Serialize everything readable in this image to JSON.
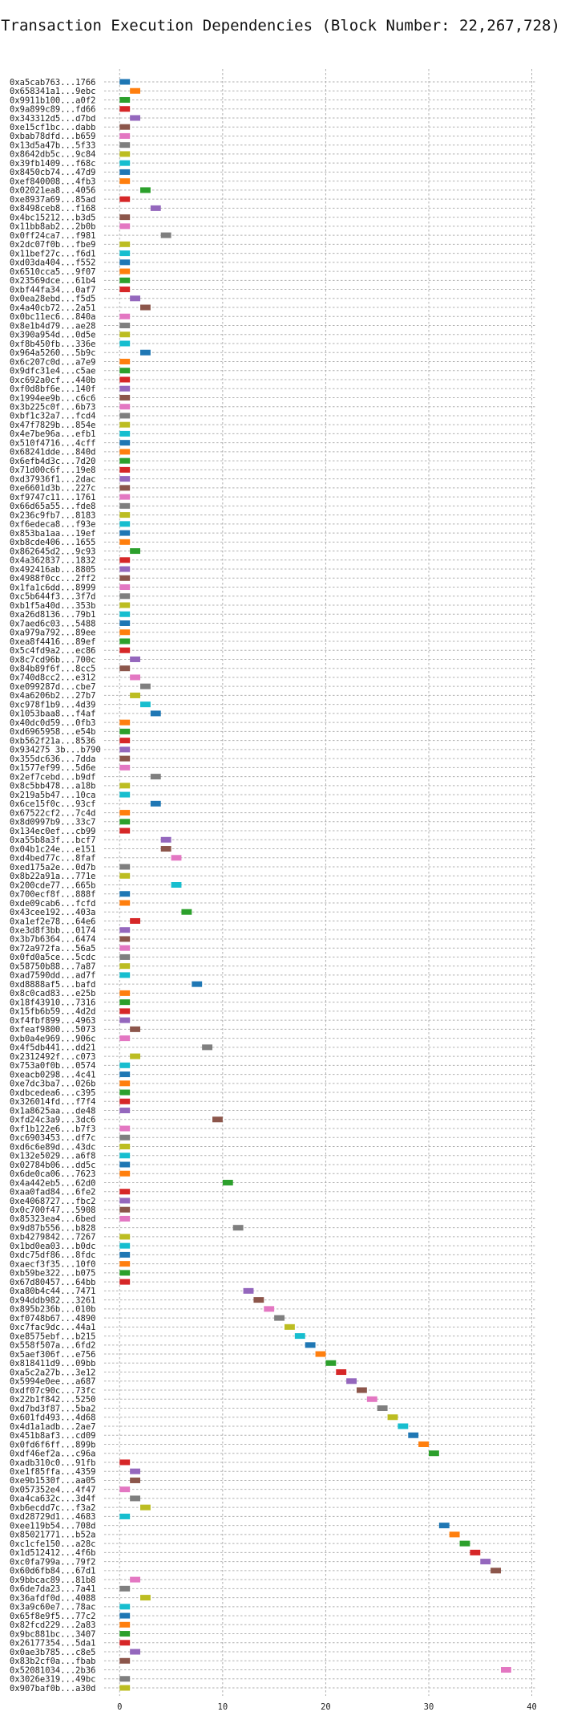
{
  "chart_data": {
    "type": "gantt",
    "title": "Transaction Execution Dependencies (Block Number: 22,267,728)",
    "xlabel": "",
    "ylabel": "",
    "xlim": [
      -1.5,
      40.5
    ],
    "xticks": [
      0,
      10,
      20,
      30,
      40
    ],
    "grid": "dashed",
    "palette": [
      "#1f77b4",
      "#ff7f0e",
      "#2ca02c",
      "#d62728",
      "#9467bd",
      "#8c564b",
      "#e377c2",
      "#7f7f7f",
      "#bcbd22",
      "#17becf"
    ],
    "rows": [
      {
        "label": "0xa5cab763...1766",
        "start": 0
      },
      {
        "label": "0x658341a1...9ebc",
        "start": 1
      },
      {
        "label": "0x9911b100...a0f2",
        "start": 0
      },
      {
        "label": "0x9a899c89...fd66",
        "start": 0
      },
      {
        "label": "0x343312d5...d7bd",
        "start": 1
      },
      {
        "label": "0xe15cf1bc...dabb",
        "start": 0
      },
      {
        "label": "0xbab78dfd...b659",
        "start": 0
      },
      {
        "label": "0x13d5a47b...5f33",
        "start": 0
      },
      {
        "label": "0x8642db5c...9c84",
        "start": 0
      },
      {
        "label": "0x39fb1409...f68c",
        "start": 0
      },
      {
        "label": "0x8450cb74...47d9",
        "start": 0
      },
      {
        "label": "0xef840008...4fb3",
        "start": 0
      },
      {
        "label": "0x02021ea8...4056",
        "start": 2
      },
      {
        "label": "0xe8937a69...85ad",
        "start": 0
      },
      {
        "label": "0x8498ceb8...f168",
        "start": 3
      },
      {
        "label": "0x4bc15212...b3d5",
        "start": 0
      },
      {
        "label": "0x11bb8ab2...2b0b",
        "start": 0
      },
      {
        "label": "0x0ff24ca7...f981",
        "start": 4
      },
      {
        "label": "0x2dc07f0b...fbe9",
        "start": 0
      },
      {
        "label": "0x11bef27c...f6d1",
        "start": 0
      },
      {
        "label": "0xd03da404...f552",
        "start": 0
      },
      {
        "label": "0x6510cca5...9f07",
        "start": 0
      },
      {
        "label": "0x23569dce...61b4",
        "start": 0
      },
      {
        "label": "0xbf44fa34...0af7",
        "start": 0
      },
      {
        "label": "0x0ea28ebd...f5d5",
        "start": 1
      },
      {
        "label": "0x4a40cb72...2a51",
        "start": 2
      },
      {
        "label": "0x0bc11ec6...840a",
        "start": 0
      },
      {
        "label": "0x8e1b4d79...ae28",
        "start": 0
      },
      {
        "label": "0x390a954d...0d5e",
        "start": 0
      },
      {
        "label": "0xf8b450fb...336e",
        "start": 0
      },
      {
        "label": "0x964a5260...5b9c",
        "start": 2
      },
      {
        "label": "0x6c207c0d...a7e9",
        "start": 0
      },
      {
        "label": "0x9dfc31e4...c5ae",
        "start": 0
      },
      {
        "label": "0xc692a0cf...440b",
        "start": 0
      },
      {
        "label": "0xf0d8bf6e...140f",
        "start": 0
      },
      {
        "label": "0x1994ee9b...c6c6",
        "start": 0
      },
      {
        "label": "0x3b225c0f...6b73",
        "start": 0
      },
      {
        "label": "0xbf1c32a7...fcd4",
        "start": 0
      },
      {
        "label": "0x47f7829b...854e",
        "start": 0
      },
      {
        "label": "0x4e7be96a...efb1",
        "start": 0
      },
      {
        "label": "0x510f4716...4cff",
        "start": 0
      },
      {
        "label": "0x68241dde...840d",
        "start": 0
      },
      {
        "label": "0x6efb4d3c...7d20",
        "start": 0
      },
      {
        "label": "0x71d00c6f...19e8",
        "start": 0
      },
      {
        "label": "0xd37936f1...2dac",
        "start": 0
      },
      {
        "label": "0xe6601d3b...227c",
        "start": 0
      },
      {
        "label": "0xf9747c11...1761",
        "start": 0
      },
      {
        "label": "0x66d65a55...fde8",
        "start": 0
      },
      {
        "label": "0x236c9fb7...8183",
        "start": 0
      },
      {
        "label": "0xf6edeca8...f93e",
        "start": 0
      },
      {
        "label": "0x853ba1aa...19ef",
        "start": 0
      },
      {
        "label": "0xb8cde406...1655",
        "start": 0
      },
      {
        "label": "0x862645d2...9c93",
        "start": 1
      },
      {
        "label": "0x4a362837...1832",
        "start": 0
      },
      {
        "label": "0x492416ab...8805",
        "start": 0
      },
      {
        "label": "0x4988f0cc...2ff2",
        "start": 0
      },
      {
        "label": "0x1fa1c6dd...8999",
        "start": 0
      },
      {
        "label": "0xc5b644f3...3f7d",
        "start": 0
      },
      {
        "label": "0xb1f5a40d...353b",
        "start": 0
      },
      {
        "label": "0xa26d8136...79b1",
        "start": 0
      },
      {
        "label": "0x7aed6c03...5488",
        "start": 0
      },
      {
        "label": "0xa979a792...89ee",
        "start": 0
      },
      {
        "label": "0xea8f4416...89ef",
        "start": 0
      },
      {
        "label": "0x5c4fd9a2...ec86",
        "start": 0
      },
      {
        "label": "0x8c7cd96b...700c",
        "start": 1
      },
      {
        "label": "0x84b89f6f...8cc5",
        "start": 0
      },
      {
        "label": "0x740d8cc2...e312",
        "start": 1
      },
      {
        "label": "0xe099287d...cbe7",
        "start": 2
      },
      {
        "label": "0x4a6206b2...27b7",
        "start": 1
      },
      {
        "label": "0xc978f1b9...4d39",
        "start": 2
      },
      {
        "label": "0x1053baa8...f4af",
        "start": 3
      },
      {
        "label": "0x40dc0d59...0fb3",
        "start": 0
      },
      {
        "label": "0xd6965958...e54b",
        "start": 0
      },
      {
        "label": "0xb562f21a...8536",
        "start": 0
      },
      {
        "label": "0x934275 3b...b790",
        "start": 0
      },
      {
        "label": "0x355dc636...7dda",
        "start": 0
      },
      {
        "label": "0x1577ef99...5d6e",
        "start": 0
      },
      {
        "label": "0x2ef7cebd...b9df",
        "start": 3
      },
      {
        "label": "0x8c5bb478...a18b",
        "start": 0
      },
      {
        "label": "0x219a5b47...10ca",
        "start": 0
      },
      {
        "label": "0x6ce15f0c...93cf",
        "start": 3
      },
      {
        "label": "0x67522cf2...7c4d",
        "start": 0
      },
      {
        "label": "0x8d0997b9...33c7",
        "start": 0
      },
      {
        "label": "0x134ec0ef...cb99",
        "start": 0
      },
      {
        "label": "0xa55b8a3f...bcf7",
        "start": 4
      },
      {
        "label": "0x04b1c24e...e151",
        "start": 4
      },
      {
        "label": "0xd4bed77c...8faf",
        "start": 5
      },
      {
        "label": "0xed175a2e...0d7b",
        "start": 0
      },
      {
        "label": "0x8b22a91a...771e",
        "start": 0
      },
      {
        "label": "0x200cde77...665b",
        "start": 5
      },
      {
        "label": "0x700ecf8f...888f",
        "start": 0
      },
      {
        "label": "0xde09cab6...fcfd",
        "start": 0
      },
      {
        "label": "0x43cee192...403a",
        "start": 6
      },
      {
        "label": "0xa1ef2e78...64e6",
        "start": 1
      },
      {
        "label": "0xe3d8f3bb...0174",
        "start": 0
      },
      {
        "label": "0x3b7b6364...6474",
        "start": 0
      },
      {
        "label": "0x72a972fa...56a5",
        "start": 0
      },
      {
        "label": "0x0fd0a5ce...5cdc",
        "start": 0
      },
      {
        "label": "0x58750b88...7a87",
        "start": 0
      },
      {
        "label": "0xad7590dd...ad7f",
        "start": 0
      },
      {
        "label": "0xd8888af5...bafd",
        "start": 7
      },
      {
        "label": "0x8c0cad83...e25b",
        "start": 0
      },
      {
        "label": "0x18f43910...7316",
        "start": 0
      },
      {
        "label": "0x15fb6b59...4d2d",
        "start": 0
      },
      {
        "label": "0xf4fbf899...4963",
        "start": 0
      },
      {
        "label": "0xfeaf9800...5073",
        "start": 1
      },
      {
        "label": "0xb0a4e969...906c",
        "start": 0
      },
      {
        "label": "0x4f5db441...dd21",
        "start": 8
      },
      {
        "label": "0x2312492f...c073",
        "start": 1
      },
      {
        "label": "0x753a0f0b...0574",
        "start": 0
      },
      {
        "label": "0xeacb0298...4c41",
        "start": 0
      },
      {
        "label": "0xe7dc3ba7...026b",
        "start": 0
      },
      {
        "label": "0xdbcedea6...c395",
        "start": 0
      },
      {
        "label": "0x326014fd...f7f4",
        "start": 0
      },
      {
        "label": "0x1a8625aa...de48",
        "start": 0
      },
      {
        "label": "0xfd24c3a9...3dc6",
        "start": 9
      },
      {
        "label": "0xf1b122e6...b7f3",
        "start": 0
      },
      {
        "label": "0xc6903453...df7c",
        "start": 0
      },
      {
        "label": "0xd6c6e89d...43dc",
        "start": 0
      },
      {
        "label": "0x132e5029...a6f8",
        "start": 0
      },
      {
        "label": "0x02784b06...dd5c",
        "start": 0
      },
      {
        "label": "0x6de0ca06...7623",
        "start": 0
      },
      {
        "label": "0x4a442eb5...62d0",
        "start": 10
      },
      {
        "label": "0xaa0fad84...6fe2",
        "start": 0
      },
      {
        "label": "0xe4068727...fbc2",
        "start": 0
      },
      {
        "label": "0x0c700f47...5908",
        "start": 0
      },
      {
        "label": "0x85323ea4...6bed",
        "start": 0
      },
      {
        "label": "0x9d87b556...b828",
        "start": 11
      },
      {
        "label": "0xb4279842...7267",
        "start": 0
      },
      {
        "label": "0x1bd0ea03...b0dc",
        "start": 0
      },
      {
        "label": "0xdc75df86...8fdc",
        "start": 0
      },
      {
        "label": "0xaecf3f35...10f0",
        "start": 0
      },
      {
        "label": "0xb59be322...b075",
        "start": 0
      },
      {
        "label": "0x67d80457...64bb",
        "start": 0
      },
      {
        "label": "0xa80b4c44...7471",
        "start": 12
      },
      {
        "label": "0x94ddb982...3261",
        "start": 13
      },
      {
        "label": "0x895b236b...010b",
        "start": 14
      },
      {
        "label": "0xf0748b67...4890",
        "start": 15
      },
      {
        "label": "0xc7fac9dc...44a1",
        "start": 16
      },
      {
        "label": "0xe8575ebf...b215",
        "start": 17
      },
      {
        "label": "0x558f507a...6fd2",
        "start": 18
      },
      {
        "label": "0x5aef306f...e756",
        "start": 19
      },
      {
        "label": "0x818411d9...09bb",
        "start": 20
      },
      {
        "label": "0xa5c2a27b...3e12",
        "start": 21
      },
      {
        "label": "0x5994e0ee...a687",
        "start": 22
      },
      {
        "label": "0xdf07c90c...73fc",
        "start": 23
      },
      {
        "label": "0x22b1f842...5250",
        "start": 24
      },
      {
        "label": "0xd7bd3f87...5ba2",
        "start": 25
      },
      {
        "label": "0x601fd493...4d68",
        "start": 26
      },
      {
        "label": "0x4d1a1adb...2ae7",
        "start": 27
      },
      {
        "label": "0x451b8af3...cd09",
        "start": 28
      },
      {
        "label": "0x0fd6f6ff...899b",
        "start": 29
      },
      {
        "label": "0xdf46ef2a...c96a",
        "start": 30
      },
      {
        "label": "0xadb310c0...91fb",
        "start": 0
      },
      {
        "label": "0xe1f85ffa...4359",
        "start": 1
      },
      {
        "label": "0xe9b1530f...aa05",
        "start": 1
      },
      {
        "label": "0x057352e4...4f47",
        "start": 0
      },
      {
        "label": "0xa4ca632c...3d4f",
        "start": 1
      },
      {
        "label": "0xb6ecdd7c...f3a2",
        "start": 2
      },
      {
        "label": "0xd28729d1...4683",
        "start": 0
      },
      {
        "label": "0xee119b54...708d",
        "start": 31
      },
      {
        "label": "0x85021771...b52a",
        "start": 32
      },
      {
        "label": "0xc1cfe150...a28c",
        "start": 33
      },
      {
        "label": "0x1d512412...4f6b",
        "start": 34
      },
      {
        "label": "0xc0fa799a...79f2",
        "start": 35
      },
      {
        "label": "0x60d6fb84...67d1",
        "start": 36
      },
      {
        "label": "0x9bbcac89...81b8",
        "start": 1
      },
      {
        "label": "0x6de7da23...7a41",
        "start": 0
      },
      {
        "label": "0x36afdf0d...4088",
        "start": 2
      },
      {
        "label": "0x3a9c60e7...78ac",
        "start": 0
      },
      {
        "label": "0x65f8e9f5...77c2",
        "start": 0
      },
      {
        "label": "0x82fcd229...2a83",
        "start": 0
      },
      {
        "label": "0x9bc881bc...3407",
        "start": 0
      },
      {
        "label": "0x26177354...5da1",
        "start": 0
      },
      {
        "label": "0x0ae3b785...c8e5",
        "start": 1
      },
      {
        "label": "0x83b2cf0a...fbab",
        "start": 0
      },
      {
        "label": "0x52081034...2b36",
        "start": 37
      },
      {
        "label": "0x3026e319...49bc",
        "start": 0
      },
      {
        "label": "0x907baf0b...a30d",
        "start": 0
      }
    ]
  }
}
